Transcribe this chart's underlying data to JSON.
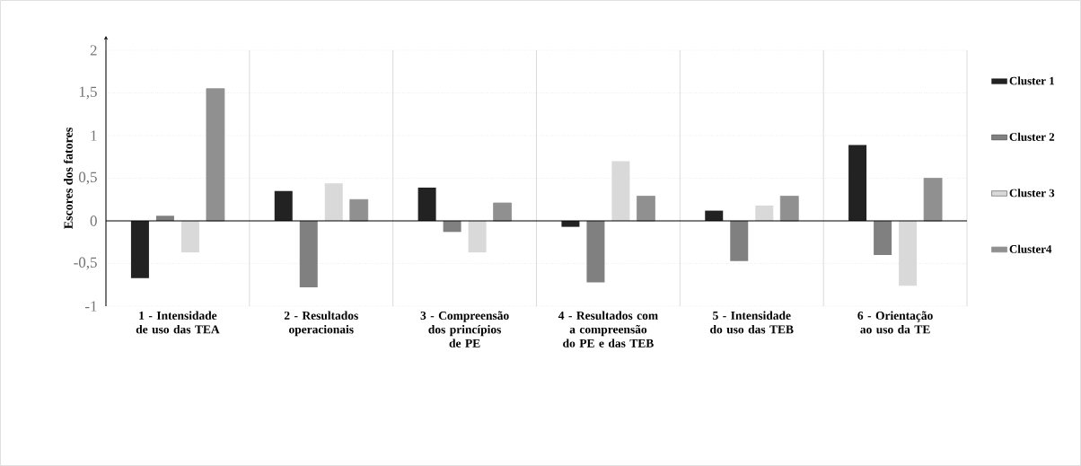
{
  "chart_data": {
    "type": "bar",
    "ylabel": "Escores dos fatores",
    "categories": [
      "1 - Intensidade de uso das TEA",
      "2 - Resultados operacionais",
      "3 - Compreensão dos princípios de PE",
      "4 - Resultados com a compreensão do PE e das TEB",
      "5 - Intensidade do uso das TEB",
      "6 - Orientação ao uso da TE"
    ],
    "series": [
      {
        "name": "Cluster 1",
        "color": "#222222",
        "values": [
          -0.67,
          0.35,
          0.39,
          -0.07,
          0.12,
          0.89
        ]
      },
      {
        "name": "Cluster 2",
        "color": "#808080",
        "values": [
          0.06,
          -0.78,
          -0.13,
          -0.72,
          -0.47,
          -0.4
        ]
      },
      {
        "name": "Cluster 3",
        "color": "#d9d9d9",
        "values": [
          -0.37,
          0.44,
          -0.37,
          0.7,
          0.18,
          -0.76
        ]
      },
      {
        "name": "Cluster4",
        "color": "#909090",
        "values": [
          1.55,
          0.25,
          0.21,
          0.29,
          0.29,
          0.5
        ]
      }
    ],
    "ylim": [
      -1,
      2
    ],
    "yticks": [
      -1,
      {
        "value": -0.5,
        "label": "-0,5"
      },
      0,
      {
        "value": 0.5,
        "label": "0,5"
      },
      1,
      {
        "value": 1.5,
        "label": "1,5"
      },
      2
    ],
    "grid": true,
    "legend": "right"
  }
}
